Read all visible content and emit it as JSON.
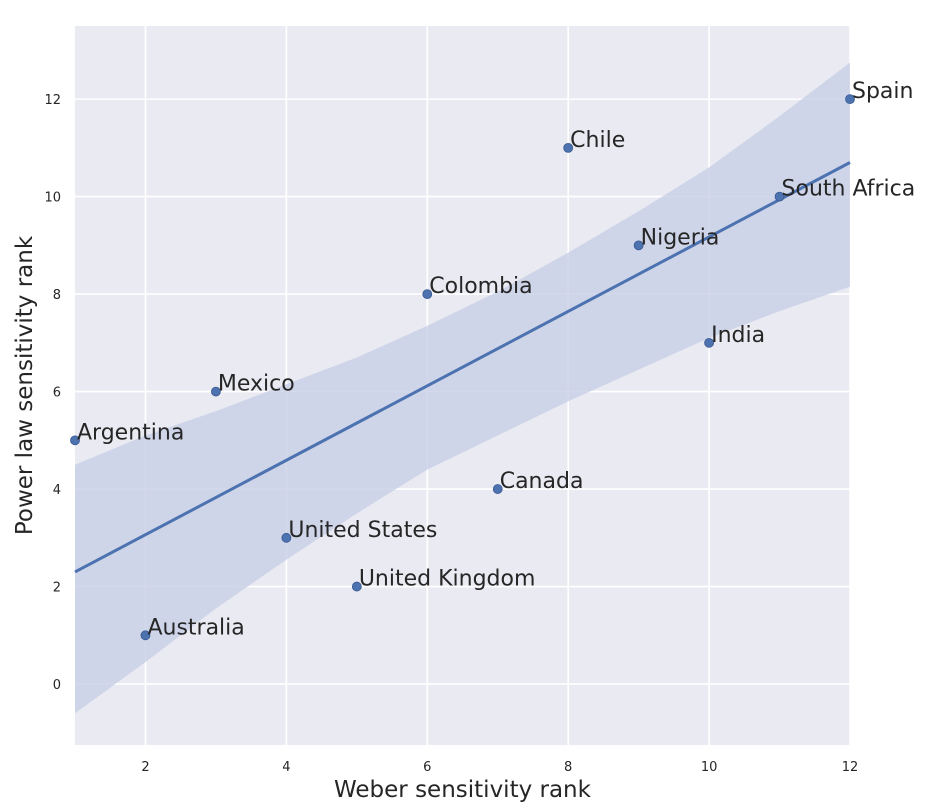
{
  "chart_data": {
    "type": "scatter",
    "xlabel": "Weber sensitivity rank",
    "ylabel": "Power law sensitivity rank",
    "xlim": [
      1,
      12
    ],
    "ylim": [
      -1.25,
      13.5
    ],
    "x_ticks": [
      2,
      4,
      6,
      8,
      10,
      12
    ],
    "y_ticks": [
      0,
      2,
      4,
      6,
      8,
      10,
      12
    ],
    "grid": true,
    "points": [
      {
        "label": "Argentina",
        "x": 1,
        "y": 5
      },
      {
        "label": "Australia",
        "x": 2,
        "y": 1
      },
      {
        "label": "Mexico",
        "x": 3,
        "y": 6
      },
      {
        "label": "United States",
        "x": 4,
        "y": 3
      },
      {
        "label": "United Kingdom",
        "x": 5,
        "y": 2
      },
      {
        "label": "Colombia",
        "x": 6,
        "y": 8
      },
      {
        "label": "Canada",
        "x": 7,
        "y": 4
      },
      {
        "label": "Chile",
        "x": 8,
        "y": 11
      },
      {
        "label": "Nigeria",
        "x": 9,
        "y": 9
      },
      {
        "label": "India",
        "x": 10,
        "y": 7
      },
      {
        "label": "South Africa",
        "x": 11,
        "y": 10
      },
      {
        "label": "Spain",
        "x": 12,
        "y": 12
      }
    ],
    "regression": {
      "start": [
        1,
        2.3
      ],
      "end": [
        12,
        10.7
      ]
    },
    "confidence_band": {
      "upper": [
        [
          1,
          4.5
        ],
        [
          2,
          5.1
        ],
        [
          3,
          5.6
        ],
        [
          4,
          6.15
        ],
        [
          5,
          6.7
        ],
        [
          6,
          7.35
        ],
        [
          7,
          8.05
        ],
        [
          8,
          8.85
        ],
        [
          9,
          9.7
        ],
        [
          10,
          10.6
        ],
        [
          11,
          11.65
        ],
        [
          12,
          12.75
        ]
      ],
      "lower": [
        [
          1,
          -0.6
        ],
        [
          2,
          0.45
        ],
        [
          3,
          1.55
        ],
        [
          4,
          2.55
        ],
        [
          5,
          3.5
        ],
        [
          6,
          4.4
        ],
        [
          7,
          5.1
        ],
        [
          8,
          5.8
        ],
        [
          9,
          6.45
        ],
        [
          10,
          7.1
        ],
        [
          11,
          7.65
        ],
        [
          12,
          8.15
        ]
      ]
    },
    "colors": {
      "background": "#eaeaf2",
      "grid": "#ffffff",
      "marker": "#4c72b0",
      "line": "#4c72b0",
      "band": "#c8d0e6"
    }
  }
}
